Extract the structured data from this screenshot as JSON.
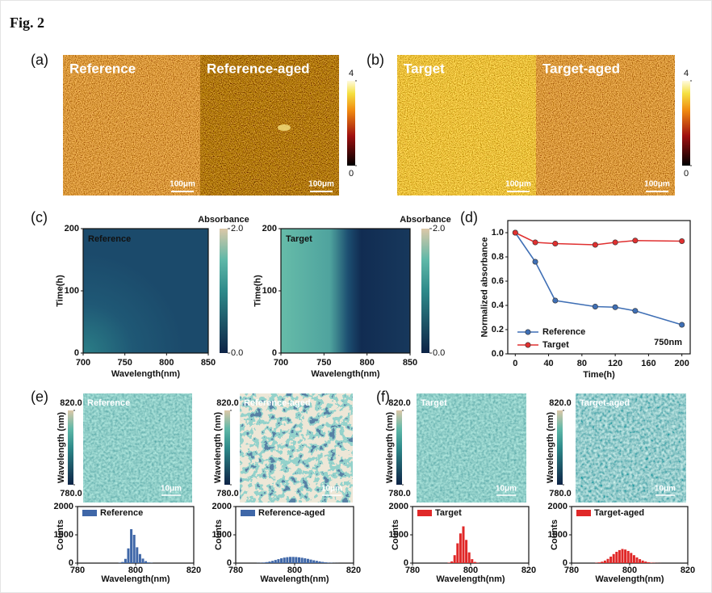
{
  "figure_label": "Fig. 2",
  "panels": {
    "a": "(a)",
    "b": "(b)",
    "c": "(c)",
    "d": "(d)",
    "e": "(e)",
    "f": "(f)"
  },
  "afm": {
    "images": [
      {
        "label": "Reference",
        "scale": "100μm"
      },
      {
        "label": "Reference-aged",
        "scale": "100μm"
      },
      {
        "label": "Target",
        "scale": "100μm"
      },
      {
        "label": "Target-aged",
        "scale": "100μm"
      }
    ],
    "colorbar_ticks": [
      0,
      4
    ]
  },
  "maps": {
    "images": [
      {
        "label": "Reference",
        "scale": "10μm"
      },
      {
        "label": "Reference-aged",
        "scale": "10μm"
      },
      {
        "label": "Target",
        "scale": "10μm"
      },
      {
        "label": "Target-aged",
        "scale": "10μm"
      }
    ],
    "colorbar_title": "Wavelength (nm)",
    "colorbar_ticks": [
      {
        "value": 780,
        "label": "780.0"
      },
      {
        "value": 820,
        "label": "820.0"
      }
    ]
  },
  "chart_data": [
    {
      "type": "heatmap",
      "title": "Reference",
      "xlabel": "Wavelength(nm)",
      "ylabel": "Time(h)",
      "xlim": [
        700,
        850
      ],
      "xticks": [
        700,
        750,
        800,
        850
      ],
      "ylim": [
        0,
        200
      ],
      "yticks": [
        0,
        100,
        200
      ],
      "colorbar_title": "Absorbance",
      "colorbar_ticks": [
        {
          "value": 0,
          "label": "0.0"
        },
        {
          "value": 2,
          "label": "2.0"
        }
      ]
    },
    {
      "type": "heatmap",
      "title": "Target",
      "xlabel": "Wavelength(nm)",
      "ylabel": "Time(h)",
      "xlim": [
        700,
        850
      ],
      "xticks": [
        700,
        750,
        800,
        850
      ],
      "ylim": [
        0,
        200
      ],
      "yticks": [
        0,
        100,
        200
      ],
      "colorbar_title": "Absorbance",
      "colorbar_ticks": [
        {
          "value": 0,
          "label": "0.0"
        },
        {
          "value": 2,
          "label": "2.0"
        }
      ]
    },
    {
      "type": "line",
      "xlabel": "Time(h)",
      "ylabel": "Normalized absorbance",
      "annotation": "750nm",
      "x": [
        0,
        24,
        48,
        96,
        120,
        144,
        200
      ],
      "xlim": [
        -9,
        210
      ],
      "xticks": [
        0,
        40,
        80,
        120,
        160,
        200
      ],
      "ylim": [
        0,
        1.1
      ],
      "yticks": [
        {
          "value": 0,
          "label": "0.0"
        },
        {
          "value": 0.2,
          "label": "0.2"
        },
        {
          "value": 0.4,
          "label": "0.4"
        },
        {
          "value": 0.6,
          "label": "0.6"
        },
        {
          "value": 0.8,
          "label": "0.8"
        },
        {
          "value": 1,
          "label": "1.0"
        }
      ],
      "series": [
        {
          "name": "Reference",
          "color": "#3f6fb5",
          "values": [
            1.0,
            0.76,
            0.44,
            0.39,
            0.385,
            0.355,
            0.24
          ]
        },
        {
          "name": "Target",
          "color": "#e03030",
          "values": [
            1.0,
            0.92,
            0.91,
            0.9,
            0.92,
            0.935,
            0.93
          ]
        }
      ]
    },
    {
      "type": "histogram",
      "xlabel": "Wavelength(nm)",
      "ylabel": "Counts",
      "xlim": [
        780,
        820
      ],
      "xticks": [
        780,
        800,
        820
      ],
      "ylim": [
        0,
        2000
      ],
      "yticks": [
        0,
        1000,
        2000
      ],
      "bins": [
        794,
        795,
        796,
        797,
        798,
        799,
        800,
        801,
        802,
        803,
        804,
        805,
        806
      ],
      "series": [
        {
          "name": "Reference",
          "color": "#3f67a8",
          "values": [
            10,
            40,
            150,
            520,
            1200,
            1000,
            560,
            320,
            160,
            70,
            25,
            8
          ]
        }
      ]
    },
    {
      "type": "histogram",
      "xlabel": "Wavelength(nm)",
      "ylabel": "Counts",
      "xlim": [
        780,
        820
      ],
      "xticks": [
        780,
        800,
        820
      ],
      "ylim": [
        0,
        2000
      ],
      "yticks": [
        0,
        1000,
        2000
      ],
      "bins": [
        787,
        788,
        789,
        790,
        791,
        792,
        793,
        794,
        795,
        796,
        797,
        798,
        799,
        800,
        801,
        802,
        803,
        804,
        805,
        806,
        807,
        808,
        809,
        810,
        811,
        812,
        813,
        814,
        815
      ],
      "series": [
        {
          "name": "Reference-aged",
          "color": "#3f67a8",
          "values": [
            5,
            10,
            20,
            35,
            55,
            80,
            110,
            140,
            170,
            195,
            210,
            220,
            220,
            215,
            205,
            190,
            170,
            150,
            125,
            100,
            80,
            60,
            42,
            28,
            18,
            10,
            5,
            3
          ]
        }
      ]
    },
    {
      "type": "histogram",
      "xlabel": "Wavelength(nm)",
      "ylabel": "Counts",
      "xlim": [
        780,
        820
      ],
      "xticks": [
        780,
        800,
        820
      ],
      "ylim": [
        0,
        2000
      ],
      "yticks": [
        0,
        1000,
        2000
      ],
      "bins": [
        792,
        793,
        794,
        795,
        796,
        797,
        798,
        799,
        800,
        801,
        802,
        803
      ],
      "series": [
        {
          "name": "Target",
          "color": "#e02828",
          "values": [
            15,
            60,
            280,
            700,
            1050,
            1300,
            820,
            380,
            140,
            40,
            10
          ]
        }
      ]
    },
    {
      "type": "histogram",
      "xlabel": "Wavelength(nm)",
      "ylabel": "Counts",
      "xlim": [
        780,
        820
      ],
      "xticks": [
        780,
        800,
        820
      ],
      "ylim": [
        0,
        2000
      ],
      "yticks": [
        0,
        1000,
        2000
      ],
      "bins": [
        788,
        789,
        790,
        791,
        792,
        793,
        794,
        795,
        796,
        797,
        798,
        799,
        800,
        801,
        802,
        803,
        804,
        805,
        806,
        807,
        808,
        809,
        810,
        811
      ],
      "series": [
        {
          "name": "Target-aged",
          "color": "#e02828",
          "values": [
            10,
            25,
            50,
            90,
            150,
            230,
            320,
            400,
            460,
            500,
            480,
            430,
            360,
            280,
            200,
            140,
            90,
            55,
            30,
            15,
            8,
            4,
            2
          ]
        }
      ]
    }
  ]
}
